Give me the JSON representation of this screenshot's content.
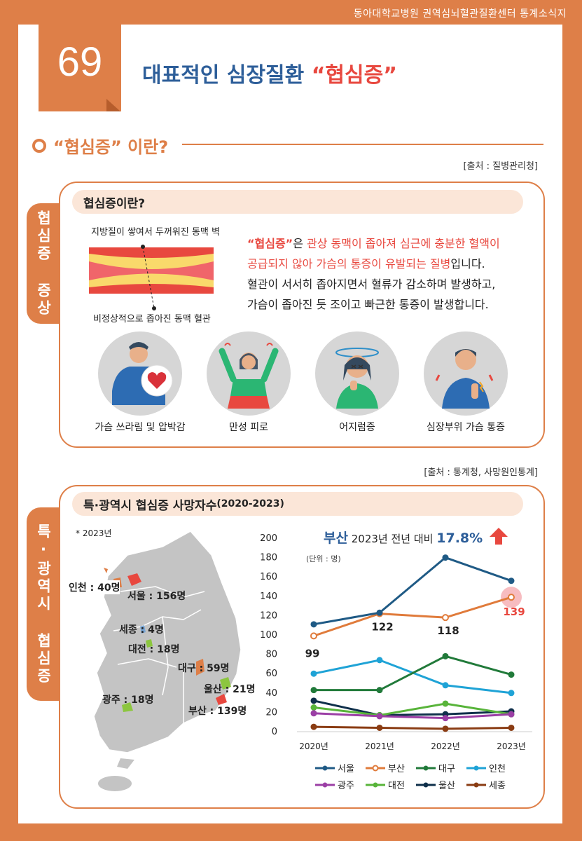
{
  "header": {
    "publication": "동아대학교병원 권역심뇌혈관질환센터 통계소식지"
  },
  "issue_number": "69",
  "title": {
    "main": "대표적인 심장질환 ",
    "accent": "“협심증”"
  },
  "section": {
    "title": "“협심증” 이란?"
  },
  "sources": {
    "first": "[출처 : 질병관리청]",
    "second": "[출처 : 통계청, 사망원인통계]"
  },
  "symptoms_box": {
    "side_tab": "협심증 증상",
    "pill": "협심증이란?",
    "artery_top_label": "지방질이 쌓여서 두꺼워진 동맥 벽",
    "artery_bottom_label": "비정상적으로 좁아진 동맥 혈관",
    "desc_line1_bold": "“협심증”",
    "desc_line1_plain": "은 ",
    "desc_line1_red": "관상 동맥이 좁아져 심근에 충분한 혈액이",
    "desc_line2_red": "공급되지 않아 가슴의 통증이 유발되는 질병",
    "desc_line2_plain": "입니다.",
    "desc_line3": "혈관이 서서히 좁아지면서 혈류가 감소하며 발생하고,",
    "desc_line4": "가슴이 좁아진 듯 조이고 빠근한 통증이 발생합니다.",
    "symptoms": [
      {
        "label": "가슴 쓰라림 및 압박감",
        "icon": "chest-pain-icon"
      },
      {
        "label": "만성 피로",
        "icon": "fatigue-icon"
      },
      {
        "label": "어지럼증",
        "icon": "dizziness-icon"
      },
      {
        "label": "심장부위 가슴 통증",
        "icon": "heart-pain-icon"
      }
    ]
  },
  "deaths_box": {
    "side_tab": "특·광역시 협심증",
    "pill_main": "특·광역시 협심증 사망자수",
    "pill_years": "(2020-2023)",
    "map_note": "* 2023년",
    "map_labels": [
      {
        "text": "인천 : 40명",
        "color": "#de7f48"
      },
      {
        "text": "서울 : 156명",
        "color": "#e8483f"
      },
      {
        "text": "세종 : 4명",
        "color": "#7aa7d6"
      },
      {
        "text": "대전 : 18명",
        "color": "#8cc63f"
      },
      {
        "text": "대구 : 59명",
        "color": "#de7f48"
      },
      {
        "text": "울산 : 21명",
        "color": "#8cc63f"
      },
      {
        "text": "광주 : 18명",
        "color": "#8cc63f"
      },
      {
        "text": "부산 : 139명",
        "color": "#e8483f"
      }
    ],
    "colors": {
      "seoul": "#e8483f",
      "incheon": "#de7f48",
      "daegu": "#de7f48",
      "busan": "#e8483f",
      "green": "#8cc63f",
      "sejong": "#7aa7d6"
    }
  },
  "chart_data": {
    "type": "line",
    "headline_city": "부산",
    "headline_text": "2023년 전년 대비",
    "headline_pct": "17.8%",
    "unit_note": "(단위 : 명)",
    "x": [
      "2020년",
      "2021년",
      "2022년",
      "2023년"
    ],
    "ylim": [
      0,
      200
    ],
    "yticks": [
      0,
      20,
      40,
      60,
      80,
      100,
      120,
      140,
      160,
      180,
      200
    ],
    "series": [
      {
        "name": "서울",
        "color": "#1f5a85",
        "values": [
          111,
          123,
          180,
          156
        ]
      },
      {
        "name": "부산",
        "color": "#e07b3b",
        "values": [
          99,
          122,
          118,
          139
        ],
        "hollow": true,
        "labels": [
          "99",
          "122",
          "118",
          "139"
        ]
      },
      {
        "name": "대구",
        "color": "#217a3a",
        "values": [
          43,
          43,
          78,
          59
        ]
      },
      {
        "name": "인천",
        "color": "#1fa3d6",
        "values": [
          60,
          74,
          48,
          40
        ]
      },
      {
        "name": "광주",
        "color": "#9b3fa5",
        "values": [
          19,
          16,
          14,
          18
        ]
      },
      {
        "name": "대전",
        "color": "#58b43a",
        "values": [
          25,
          17,
          29,
          18
        ]
      },
      {
        "name": "울산",
        "color": "#0e2f4a",
        "values": [
          32,
          17,
          18,
          21
        ]
      },
      {
        "name": "세종",
        "color": "#8a3c13",
        "values": [
          5,
          4,
          3,
          4
        ]
      }
    ]
  }
}
